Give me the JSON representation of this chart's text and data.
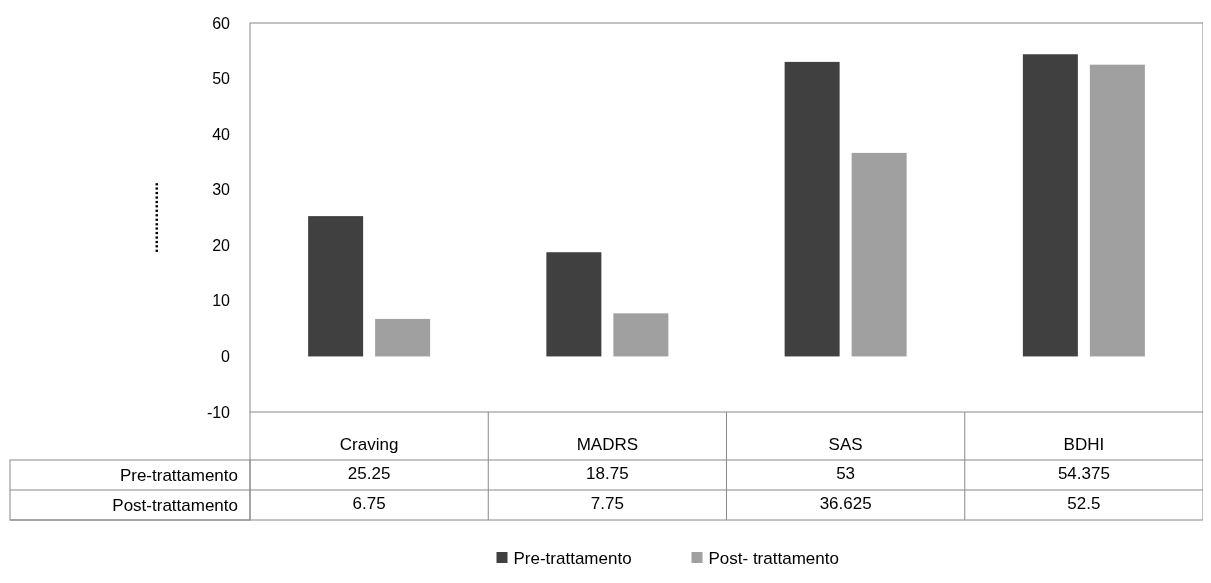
{
  "chart_data": {
    "type": "bar",
    "ylabel": "................",
    "categories": [
      "Craving",
      "MADRS",
      "SAS",
      "BDHI"
    ],
    "series": [
      {
        "name": "Pre-trattamento",
        "color": "#404040",
        "values": [
          25.25,
          18.75,
          53,
          54.375
        ]
      },
      {
        "name": "Post- trattamento",
        "color": "#a0a0a0",
        "values": [
          6.75,
          7.75,
          36.625,
          52.5
        ]
      }
    ],
    "ylim": [
      -10,
      60
    ],
    "yticks": [
      -10,
      0,
      10,
      20,
      30,
      40,
      50,
      60
    ],
    "grid": false,
    "legend": "bottom",
    "data_labels": true,
    "annotations": [
      "Pre-trattamento",
      "Post-trattamento"
    ]
  }
}
